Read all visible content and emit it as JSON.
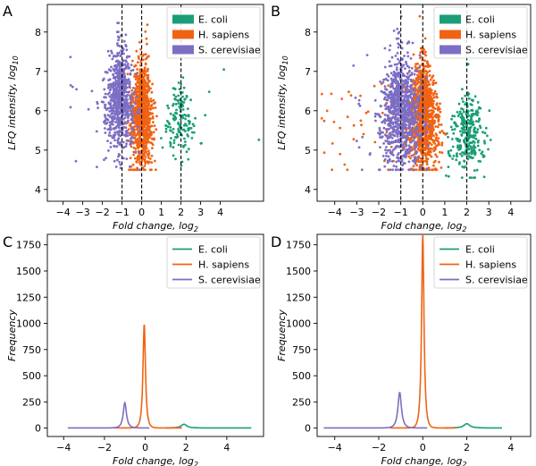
{
  "colors": {
    "ecoli": "#1b9e77",
    "hsapiens": "#f06314",
    "scerevisiae": "#7d6ec4"
  },
  "chart_data": [
    {
      "panel": "A",
      "type": "scatter",
      "xlabel": "Fold change, log",
      "xlabel_sub": "2",
      "ylabel": "LFQ intensity, log",
      "ylabel_sub": "10",
      "xlim": [
        -4.8,
        6.2
      ],
      "ylim": [
        3.7,
        8.7
      ],
      "xticks": [
        -4,
        -3,
        -2,
        -1,
        0,
        1,
        2,
        3,
        4
      ],
      "yticks": [
        4,
        5,
        6,
        7,
        8
      ],
      "vlines": [
        -1,
        0,
        2
      ],
      "legend": [
        "E. coli",
        "H. sapiens",
        "S. cerevisiae"
      ],
      "legend_position": "top-right",
      "series": [
        {
          "name": "E. coli",
          "center_x": 2.0,
          "spread_x": 0.35,
          "center_y": 5.7,
          "spread_y": 0.45,
          "y_range": [
            4.5,
            7.4
          ],
          "x_tail": 6.0,
          "n": 150
        },
        {
          "name": "H. sapiens",
          "center_x": 0.0,
          "spread_x": 0.22,
          "center_y": 5.9,
          "spread_y": 0.6,
          "y_range": [
            4.5,
            8.4
          ],
          "n": 900
        },
        {
          "name": "S. cerevisiae",
          "center_x": -1.1,
          "spread_x": 0.3,
          "center_y": 6.3,
          "spread_y": 0.65,
          "y_range": [
            4.5,
            8.4
          ],
          "x_min": -3.8,
          "n": 750
        }
      ]
    },
    {
      "panel": "B",
      "type": "scatter",
      "xlabel": "Fold change, log",
      "xlabel_sub": "2",
      "ylabel": "LFQ intensity, log",
      "ylabel_sub": "10",
      "xlim": [
        -4.8,
        4.9
      ],
      "ylim": [
        3.7,
        8.7
      ],
      "xticks": [
        -4,
        -3,
        -2,
        -1,
        0,
        1,
        2,
        3,
        4
      ],
      "yticks": [
        4,
        5,
        6,
        7,
        8
      ],
      "vlines": [
        -1,
        0,
        2
      ],
      "legend": [
        "E. coli",
        "H. sapiens",
        "S. cerevisiae"
      ],
      "legend_position": "top-right",
      "series": [
        {
          "name": "E. coli",
          "center_x": 2.0,
          "spread_x": 0.3,
          "center_y": 5.4,
          "spread_y": 0.5,
          "y_range": [
            4.3,
            7.3
          ],
          "n": 300
        },
        {
          "name": "H. sapiens",
          "center_x": 0.0,
          "spread_x": 0.25,
          "center_y": 5.9,
          "spread_y": 0.65,
          "y_range": [
            4.5,
            8.4
          ],
          "x_min": -4.6,
          "n": 1100
        },
        {
          "name": "S. cerevisiae",
          "center_x": -1.0,
          "spread_x": 0.35,
          "center_y": 6.0,
          "spread_y": 0.7,
          "y_range": [
            4.5,
            8.4
          ],
          "x_min": -3.3,
          "n": 950
        }
      ]
    },
    {
      "panel": "C",
      "type": "line",
      "xlabel": "Fold change, log",
      "xlabel_sub": "2",
      "ylabel": "Frequency",
      "xlim": [
        -4.8,
        5.8
      ],
      "ylim": [
        -80,
        1850
      ],
      "xticks": [
        -4,
        -2,
        0,
        2,
        4
      ],
      "yticks": [
        0,
        250,
        500,
        750,
        1000,
        1250,
        1500,
        1750
      ],
      "legend": [
        "E. coli",
        "H. sapiens",
        "S. cerevisiae"
      ],
      "legend_position": "top-right",
      "series": [
        {
          "name": "E. coli",
          "x_range": [
            1.0,
            5.2
          ],
          "peak_x": 1.9,
          "peak": 35,
          "width": 0.22
        },
        {
          "name": "H. sapiens",
          "x_range": [
            -1.5,
            1.8
          ],
          "peak_x": -0.05,
          "peak": 990,
          "width": 0.1
        },
        {
          "name": "S. cerevisiae",
          "x_range": [
            -3.8,
            0.2
          ],
          "peak_x": -1.0,
          "peak": 240,
          "width": 0.13
        }
      ]
    },
    {
      "panel": "D",
      "type": "line",
      "xlabel": "Fold change, log",
      "xlabel_sub": "2",
      "ylabel": "Frequency",
      "xlim": [
        -4.8,
        4.9
      ],
      "ylim": [
        -80,
        1850
      ],
      "xticks": [
        -4,
        -2,
        0,
        2,
        4
      ],
      "yticks": [
        0,
        250,
        500,
        750,
        1000,
        1250,
        1500,
        1750
      ],
      "legend": [
        "E. coli",
        "H. sapiens",
        "S. cerevisiae"
      ],
      "legend_position": "top-right",
      "series": [
        {
          "name": "E. coli",
          "x_range": [
            1.0,
            3.6
          ],
          "peak_x": 2.0,
          "peak": 40,
          "width": 0.22
        },
        {
          "name": "H. sapiens",
          "x_range": [
            -1.5,
            1.5
          ],
          "peak_x": 0.0,
          "peak": 1840,
          "width": 0.09
        },
        {
          "name": "S. cerevisiae",
          "x_range": [
            -4.5,
            0.2
          ],
          "peak_x": -1.05,
          "peak": 340,
          "width": 0.13
        }
      ]
    }
  ]
}
